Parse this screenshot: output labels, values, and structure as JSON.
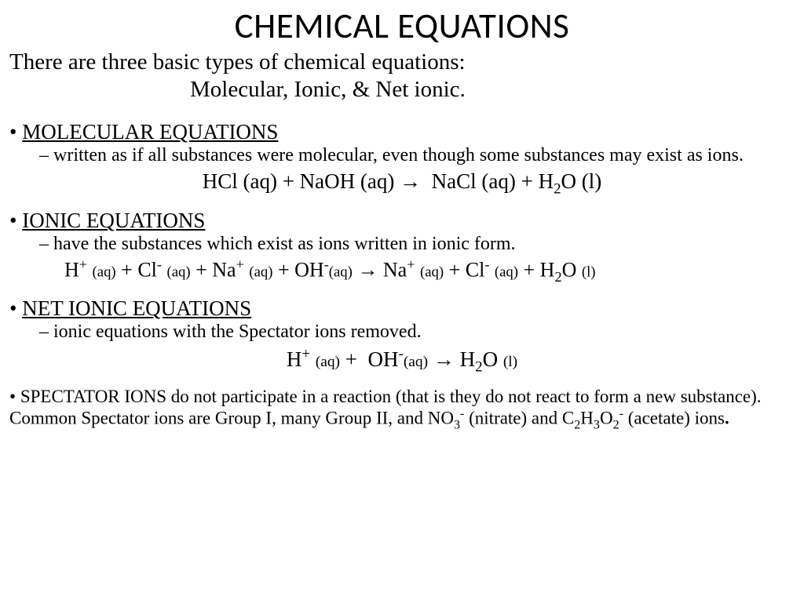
{
  "title": "CHEMICAL EQUATIONS",
  "intro_line1": "There are three basic types of chemical equations:",
  "intro_line2": "Molecular, Ionic, & Net ionic.",
  "sections": {
    "molecular": {
      "heading": "MOLECULAR EQUATIONS",
      "desc": "written as if all substances were molecular, even though some substances may exist as ions."
    },
    "ionic": {
      "heading": "IONIC EQUATIONS",
      "desc": "have the substances which exist as ions written in ionic form."
    },
    "netionic": {
      "heading": "NET IONIC EQUATIONS",
      "desc": "ionic equations with the Spectator ions removed."
    }
  },
  "equations": {
    "molecular_html": "HCl (aq) + NaOH (aq) &rarr;&nbsp; NaCl (aq) + H<sub>2</sub>O (l)",
    "ionic_html": "H<sup>+</sup> <span class='substate'>(aq)</span> + Cl<sup>-</sup> <span class='substate'>(aq)</span> + Na<sup>+</sup> <span class='substate'>(aq)</span> + OH<sup>-</sup><span class='substate'>(aq)</span> &rarr; Na<sup>+</sup> <span class='substate'>(aq)</span> + Cl<sup>-</sup> <span class='substate'>(aq)</span> + H<sub>2</sub>O <span class='substate'>(l)</span>",
    "netionic_html": "H<sup>+</sup> <span class='substate'>(aq)</span> +&nbsp; OH<sup>-</sup><span class='substate'>(aq)</span> &rarr; H<sub>2</sub>O <span class='substate'>(l)</span>"
  },
  "spectator_html": "SPECTATOR IONS do not participate in a reaction (that is they do not react to form a new substance).&nbsp; Common Spectator ions are Group I, many Group II, and NO<sub>3</sub><sup>-</sup> (nitrate) and C<sub>2</sub>H<sub>3</sub>O<sub>2</sub><sup>-</sup> (acetate) ions<b>.</b>",
  "colors": {
    "background": "#ffffff",
    "text": "#000000"
  },
  "fonts": {
    "title_family": "Calibri",
    "body_family": "Times New Roman",
    "title_size_pt": 34,
    "body_size_pt": 22
  }
}
